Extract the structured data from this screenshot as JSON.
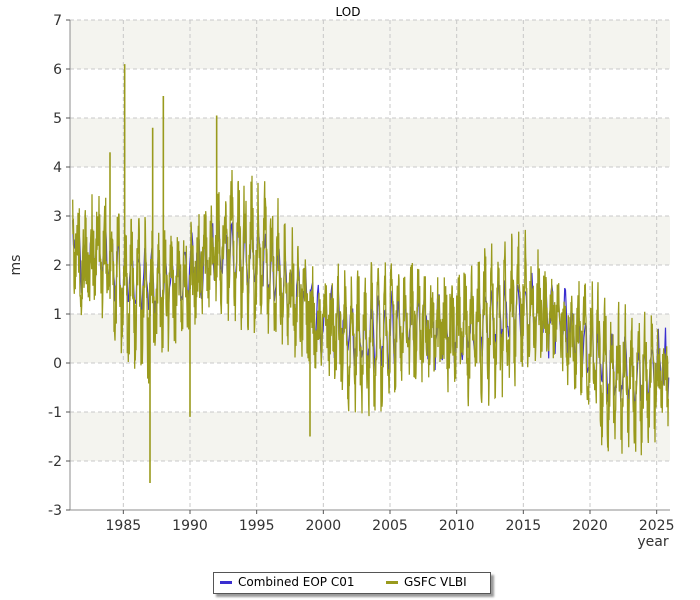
{
  "chart_data": {
    "type": "line",
    "title": "LOD",
    "xlabel": "year",
    "ylabel": "ms",
    "xlim": [
      1981,
      2026
    ],
    "ylim": [
      -3,
      7
    ],
    "xticks": [
      1985,
      1990,
      1995,
      2000,
      2005,
      2010,
      2015,
      2020,
      2025
    ],
    "yticks": [
      -3,
      -2,
      -1,
      0,
      1,
      2,
      3,
      4,
      5,
      6,
      7
    ],
    "grid": true,
    "legend": "bottom-center",
    "series": [
      {
        "name": "Combined EOP C01",
        "color": "#3a2fd0",
        "x": [
          1981.2,
          1981.4,
          1981.6,
          1982.0,
          1983.0,
          1985.0,
          1988.0,
          1992.0,
          1995.0,
          1998.0,
          2000.0,
          2003.0,
          2006.0,
          2010.0,
          2015.0,
          2018.0,
          2020.0,
          2023.0,
          2025.9
        ],
        "y": [
          2.5,
          2.8,
          2.2,
          2.0,
          2.3,
          1.8,
          1.5,
          2.3,
          2.1,
          1.4,
          0.8,
          0.6,
          0.7,
          0.7,
          1.1,
          0.8,
          0.2,
          -0.3,
          0.0
        ]
      },
      {
        "name": "GSFC VLBI",
        "color": "#999a1d",
        "x": [
          1981.2,
          1981.6,
          1982.0,
          1983.0,
          1984.0,
          1985.0,
          1986.0,
          1987.0,
          1988.0,
          1989.0,
          1990.0,
          1991.0,
          1992.0,
          1993.0,
          1994.0,
          1995.0,
          1996.0,
          1997.0,
          1998.0,
          1999.0,
          2000.0,
          2001.0,
          2002.0,
          2003.0,
          2004.0,
          2005.0,
          2006.0,
          2007.0,
          2008.0,
          2009.0,
          2010.0,
          2011.0,
          2012.0,
          2013.0,
          2014.0,
          2015.0,
          2016.0,
          2017.0,
          2018.0,
          2019.0,
          2020.0,
          2021.0,
          2022.0,
          2023.0,
          2024.0,
          2025.0,
          2025.9
        ],
        "y": [
          2.6,
          2.2,
          2.0,
          2.3,
          1.9,
          1.6,
          1.4,
          1.2,
          1.3,
          1.6,
          1.8,
          2.0,
          2.3,
          2.4,
          2.3,
          2.2,
          2.0,
          1.7,
          1.4,
          1.0,
          0.7,
          0.8,
          0.5,
          0.4,
          0.3,
          0.6,
          0.9,
          0.8,
          0.7,
          0.6,
          0.7,
          0.6,
          0.8,
          0.7,
          0.9,
          1.3,
          1.1,
          0.9,
          0.7,
          0.6,
          0.3,
          -0.2,
          -0.4,
          -0.3,
          -0.4,
          -0.3,
          -0.1
        ],
        "spikes": [
          {
            "x": 1985.1,
            "y": 6.1
          },
          {
            "x": 1987.2,
            "y": 4.8
          },
          {
            "x": 1987.0,
            "y": -2.45
          },
          {
            "x": 1988.0,
            "y": 5.45
          },
          {
            "x": 1992.0,
            "y": 5.05
          },
          {
            "x": 1984.0,
            "y": 4.3
          },
          {
            "x": 1999.0,
            "y": -1.5
          },
          {
            "x": 1990.0,
            "y": -1.1
          }
        ]
      }
    ]
  }
}
